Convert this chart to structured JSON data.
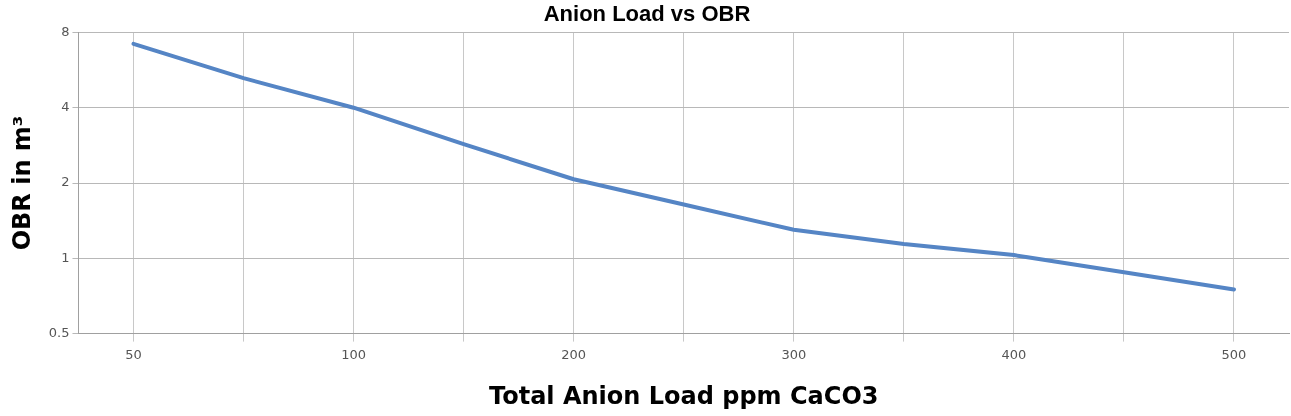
{
  "chart_data": {
    "type": "line",
    "title": "Anion Load vs OBR",
    "xlabel": "Total Anion Load ppm CaCO3",
    "ylabel": "OBR in m³",
    "categories": [
      "50",
      null,
      "100",
      null,
      "200",
      null,
      "300",
      null,
      "400",
      null,
      "500"
    ],
    "series": [
      {
        "color": "#5585c5",
        "values": [
          7.2,
          5.25,
          4.0,
          2.86,
          2.07,
          1.64,
          1.3,
          1.14,
          1.03,
          0.88,
          0.75
        ]
      }
    ],
    "log": "y",
    "ylim": [
      0.5,
      8
    ],
    "yticks": [
      0.5,
      1,
      2,
      4,
      8
    ],
    "grid": true,
    "legend": false,
    "marker": "none",
    "line_style": "solid"
  }
}
